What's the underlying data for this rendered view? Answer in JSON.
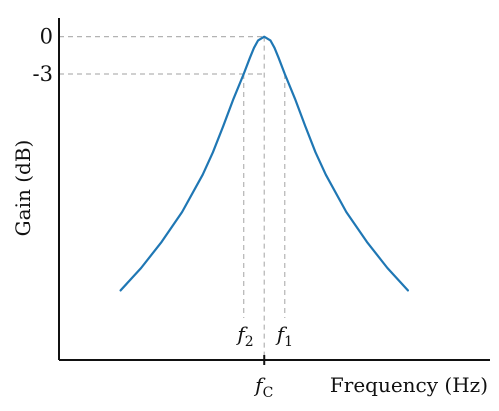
{
  "chart_data": {
    "type": "line",
    "title": "",
    "xlabel": "Frequency (Hz)",
    "ylabel": "Gain (dB)",
    "y_ticks": [
      {
        "value": 0,
        "label": "0"
      },
      {
        "value": -3,
        "label": "-3"
      }
    ],
    "x_markers": [
      {
        "id": "f2",
        "base": "f",
        "sub": "2",
        "x": -0.1
      },
      {
        "id": "fc",
        "base": "f",
        "sub": "C",
        "x": 0
      },
      {
        "id": "f1",
        "base": "f",
        "sub": "1",
        "x": 0.1
      }
    ],
    "xlim": [
      -1,
      1.1
    ],
    "ylim": [
      -26,
      1.5
    ],
    "grid": false,
    "series": [
      {
        "color": "#1f77b4",
        "x": [
          -0.7,
          -0.6,
          -0.5,
          -0.4,
          -0.3,
          -0.25,
          -0.2,
          -0.15,
          -0.1,
          -0.07,
          -0.05,
          -0.03,
          0,
          0.03,
          0.05,
          0.07,
          0.1,
          0.15,
          0.2,
          0.25,
          0.3,
          0.4,
          0.5,
          0.6,
          0.7
        ],
        "y": [
          -20.4,
          -18.6,
          -16.5,
          -14.1,
          -11.1,
          -9.3,
          -7.2,
          -5.0,
          -3.0,
          -1.7,
          -0.9,
          -0.3,
          0,
          -0.3,
          -0.9,
          -1.7,
          -3.0,
          -5.0,
          -7.2,
          -9.3,
          -11.1,
          -14.1,
          -16.5,
          -18.6,
          -20.4
        ]
      }
    ]
  },
  "colors": {
    "curve": "#1f77b4",
    "axis": "#111111",
    "guide": "#b3b3b3"
  }
}
